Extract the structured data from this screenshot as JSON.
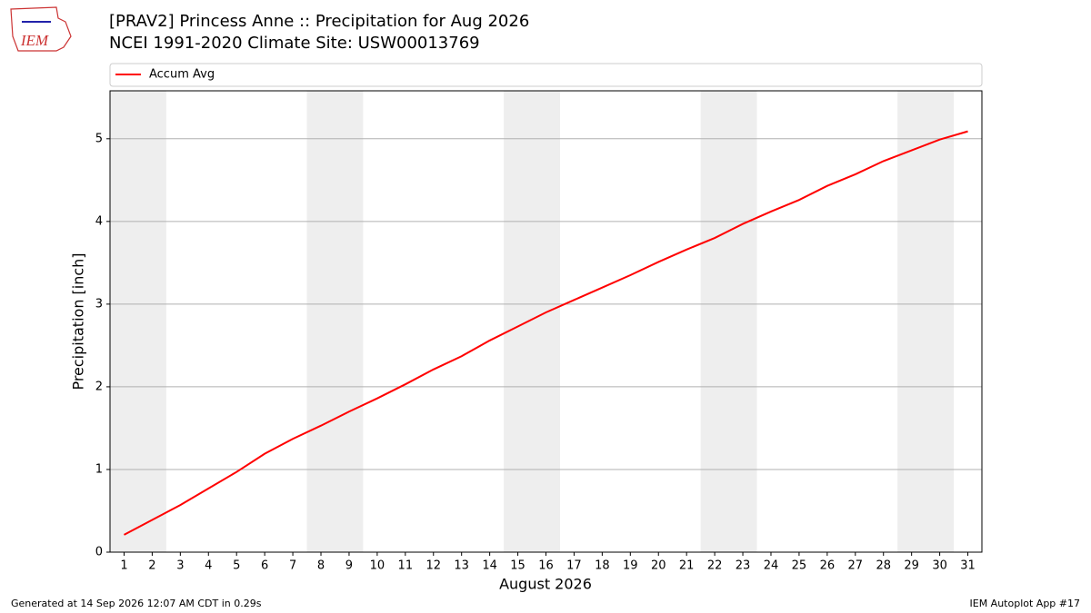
{
  "logo_text": "IEM",
  "footer": {
    "left": "Generated at 14 Sep 2026 12:07 AM CDT in 0.29s",
    "right": "IEM Autoplot App #17"
  },
  "chart_data": {
    "type": "line",
    "title": "[PRAV2] Princess Anne :: Precipitation for Aug 2026",
    "subtitle": "NCEI 1991-2020 Climate Site: USW00013769",
    "xlabel": "August 2026",
    "ylabel": "Precipitation [inch]",
    "x": [
      1,
      2,
      3,
      4,
      5,
      6,
      7,
      8,
      9,
      10,
      11,
      12,
      13,
      14,
      15,
      16,
      17,
      18,
      19,
      20,
      21,
      22,
      23,
      24,
      25,
      26,
      27,
      28,
      29,
      30,
      31
    ],
    "series": [
      {
        "name": "Accum Avg",
        "color": "#ff0000",
        "values": [
          0.21,
          0.39,
          0.57,
          0.77,
          0.97,
          1.19,
          1.37,
          1.53,
          1.7,
          1.86,
          2.03,
          2.21,
          2.37,
          2.56,
          2.73,
          2.9,
          3.05,
          3.2,
          3.35,
          3.51,
          3.66,
          3.8,
          3.97,
          4.12,
          4.26,
          4.43,
          4.57,
          4.73,
          4.86,
          4.99,
          5.09
        ]
      }
    ],
    "shaded_spans": [
      [
        0.5,
        2.5
      ],
      [
        7.5,
        9.5
      ],
      [
        14.5,
        16.5
      ],
      [
        21.5,
        23.5
      ],
      [
        28.5,
        30.5
      ]
    ],
    "shade_color": "#eeeeee",
    "xlim": [
      0.5,
      31.5
    ],
    "xticks": [
      1,
      2,
      3,
      4,
      5,
      6,
      7,
      8,
      9,
      10,
      11,
      12,
      13,
      14,
      15,
      16,
      17,
      18,
      19,
      20,
      21,
      22,
      23,
      24,
      25,
      26,
      27,
      28,
      29,
      30,
      31
    ],
    "ylim": [
      0,
      5.58
    ],
    "yticks": [
      0,
      1,
      2,
      3,
      4,
      5
    ],
    "grid": true,
    "legend": "top"
  }
}
